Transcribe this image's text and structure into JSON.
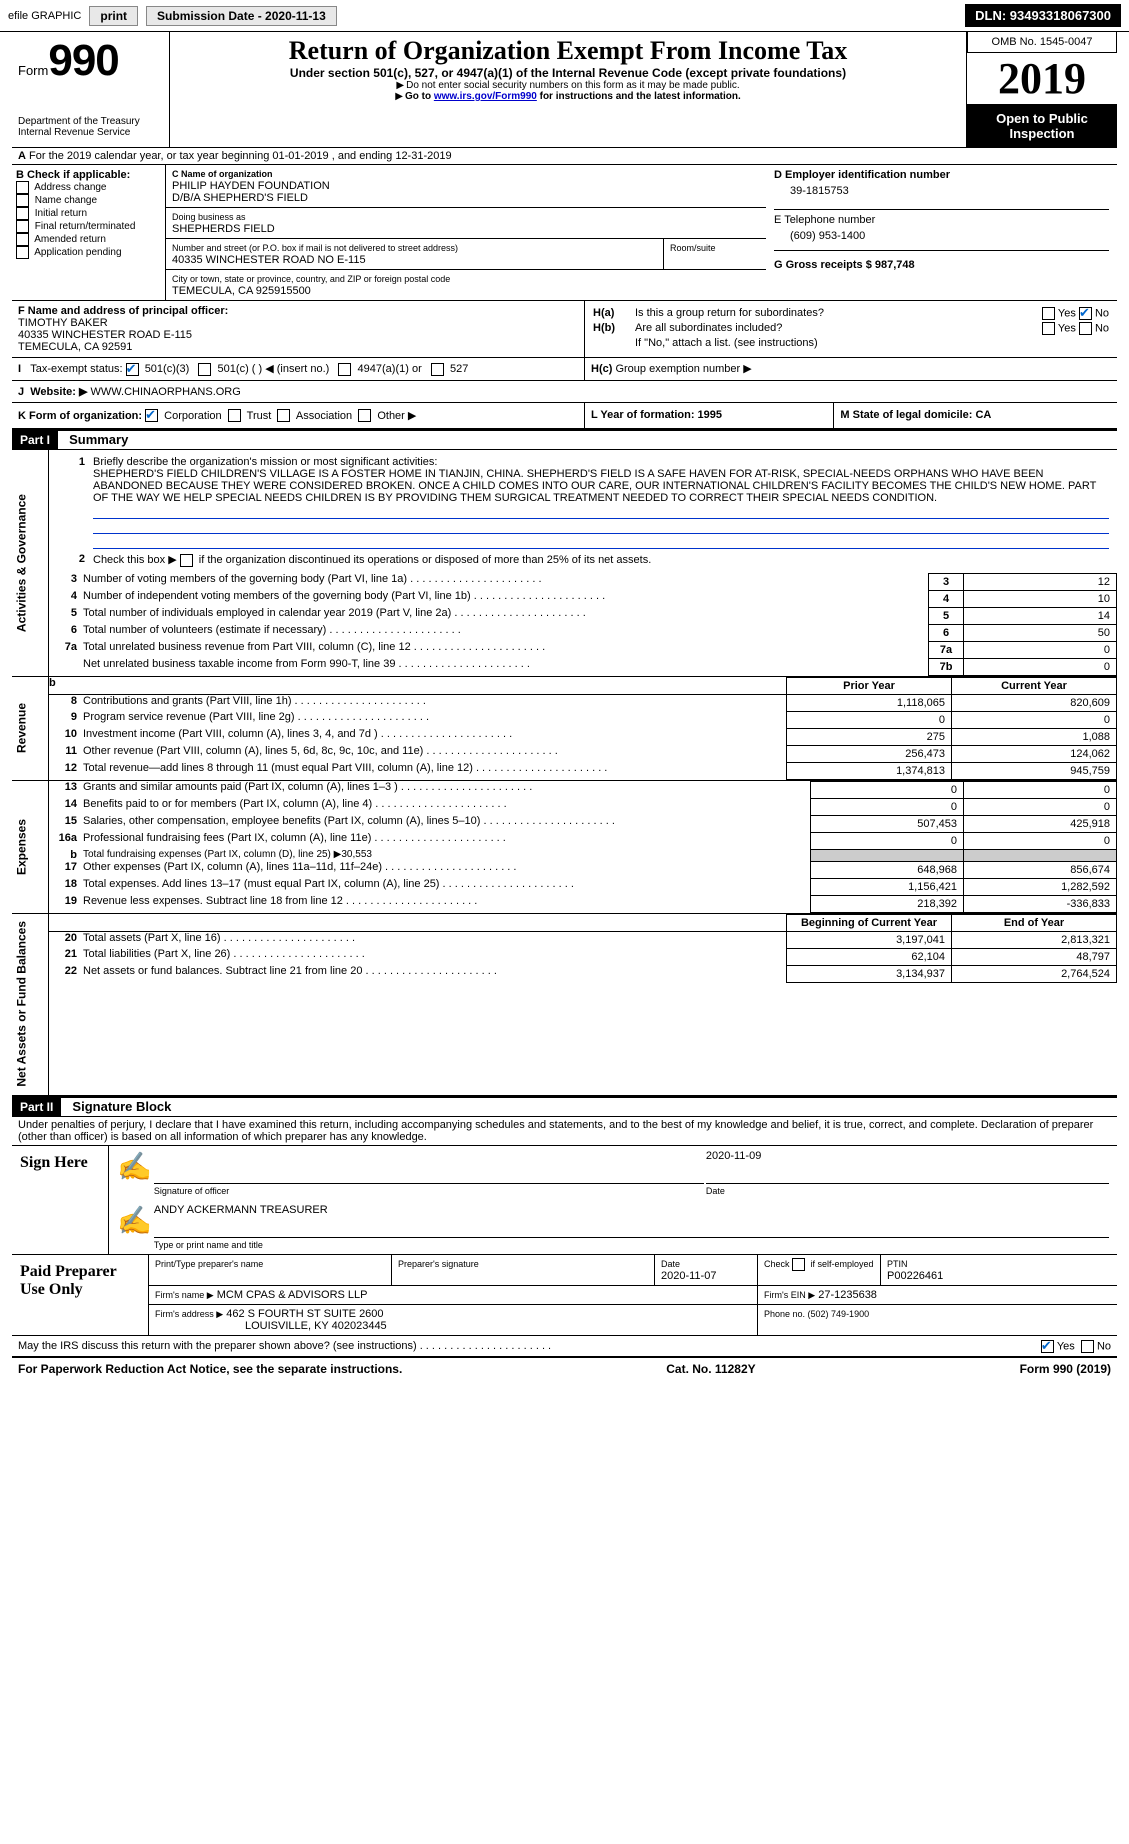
{
  "topbar": {
    "efile": "efile GRAPHIC",
    "print": "print",
    "submission": "Submission Date - 2020-11-13",
    "dln": "DLN: 93493318067300"
  },
  "header": {
    "form_word": "Form",
    "form_no": "990",
    "dept1": "Department of the Treasury",
    "dept2": "Internal Revenue Service",
    "title": "Return of Organization Exempt From Income Tax",
    "sub1": "Under section 501(c), 527, or 4947(a)(1) of the Internal Revenue Code (except private foundations)",
    "sub2": "Do not enter social security numbers on this form as it may be made public.",
    "sub3_pre": "Go to ",
    "sub3_link": "www.irs.gov/Form990",
    "sub3_post": " for instructions and the latest information.",
    "omb": "OMB No. 1545-0047",
    "year": "2019",
    "open": "Open to Public Inspection"
  },
  "row_a": "For the 2019 calendar year, or tax year beginning 01-01-2019    , and ending 12-31-2019",
  "section_b": {
    "label": "B Check if applicable:",
    "items": [
      "Address change",
      "Name change",
      "Initial return",
      "Final return/terminated",
      "Amended return",
      "Application pending"
    ]
  },
  "section_c": {
    "label": "C Name of organization",
    "name1": "PHILIP HAYDEN FOUNDATION",
    "name2": "D/B/A SHEPHERD'S FIELD",
    "dba_label": "Doing business as",
    "dba": "SHEPHERDS FIELD",
    "addr_label": "Number and street (or P.O. box if mail is not delivered to street address)",
    "addr": "40335 WINCHESTER ROAD NO E-115",
    "room_label": "Room/suite",
    "city_label": "City or town, state or province, country, and ZIP or foreign postal code",
    "city": "TEMECULA, CA  925915500"
  },
  "section_d": {
    "label": "D Employer identification number",
    "ein": "39-1815753"
  },
  "section_e": {
    "label": "E Telephone number",
    "phone": "(609) 953-1400"
  },
  "section_g": {
    "label": "G Gross receipts $ 987,748"
  },
  "section_f": {
    "label": "F Name and address of principal officer:",
    "name": "TIMOTHY BAKER",
    "addr": "40335 WINCHESTER ROAD E-115",
    "city": "TEMECULA, CA  92591"
  },
  "section_h": {
    "ha": "Is this a group return for subordinates?",
    "hb": "Are all subordinates included?",
    "hno": "If \"No,\" attach a list. (see instructions)",
    "hc": "Group exemption number ▶",
    "yes": "Yes",
    "no": "No",
    "ha_label": "H(a)",
    "hb_label": "H(b)",
    "hc_label": "H(c)"
  },
  "row_i": {
    "label": "Tax-exempt status:",
    "o1": "501(c)(3)",
    "o2": "501(c) (   ) ◀ (insert no.)",
    "o3": "4947(a)(1) or",
    "o4": "527"
  },
  "row_j": {
    "label": "Website: ▶",
    "value": "WWW.CHINAORPHANS.ORG"
  },
  "row_k": {
    "label": "K Form of organization:",
    "o1": "Corporation",
    "o2": "Trust",
    "o3": "Association",
    "o4": "Other ▶"
  },
  "row_l": {
    "label": "L Year of formation: 1995"
  },
  "row_m": {
    "label": "M State of legal domicile: CA"
  },
  "part1": {
    "tag": "Part I",
    "title": "Summary",
    "side1": "Activities & Governance",
    "side2": "Revenue",
    "side3": "Expenses",
    "side4": "Net Assets or Fund Balances",
    "l1": "Briefly describe the organization's mission or most significant activities:",
    "mission": "SHEPHERD'S FIELD CHILDREN'S VILLAGE IS A FOSTER HOME IN TIANJIN, CHINA. SHEPHERD'S FIELD IS A SAFE HAVEN FOR AT-RISK, SPECIAL-NEEDS ORPHANS WHO HAVE BEEN ABANDONED BECAUSE THEY WERE CONSIDERED BROKEN. ONCE A CHILD COMES INTO OUR CARE, OUR INTERNATIONAL CHILDREN'S FACILITY BECOMES THE CHILD'S NEW HOME. PART OF THE WAY WE HELP SPECIAL NEEDS CHILDREN IS BY PROVIDING THEM SURGICAL TREATMENT NEEDED TO CORRECT THEIR SPECIAL NEEDS CONDITION.",
    "l2": "Check this box ▶       if the organization discontinued its operations or disposed of more than 25% of its net assets.",
    "lines": [
      {
        "n": "3",
        "t": "Number of voting members of the governing body (Part VI, line 1a)",
        "bn": "3",
        "v": "12"
      },
      {
        "n": "4",
        "t": "Number of independent voting members of the governing body (Part VI, line 1b)",
        "bn": "4",
        "v": "10"
      },
      {
        "n": "5",
        "t": "Total number of individuals employed in calendar year 2019 (Part V, line 2a)",
        "bn": "5",
        "v": "14"
      },
      {
        "n": "6",
        "t": "Total number of volunteers (estimate if necessary)",
        "bn": "6",
        "v": "50"
      },
      {
        "n": "7a",
        "t": "Total unrelated business revenue from Part VIII, column (C), line 12",
        "bn": "7a",
        "v": "0"
      },
      {
        "n": "",
        "t": "Net unrelated business taxable income from Form 990-T, line 39",
        "bn": "7b",
        "v": "0"
      }
    ],
    "col_prior": "Prior Year",
    "col_current": "Current Year",
    "rev": [
      {
        "n": "8",
        "t": "Contributions and grants (Part VIII, line 1h)",
        "p": "1,118,065",
        "c": "820,609"
      },
      {
        "n": "9",
        "t": "Program service revenue (Part VIII, line 2g)",
        "p": "0",
        "c": "0"
      },
      {
        "n": "10",
        "t": "Investment income (Part VIII, column (A), lines 3, 4, and 7d )",
        "p": "275",
        "c": "1,088"
      },
      {
        "n": "11",
        "t": "Other revenue (Part VIII, column (A), lines 5, 6d, 8c, 9c, 10c, and 11e)",
        "p": "256,473",
        "c": "124,062"
      },
      {
        "n": "12",
        "t": "Total revenue—add lines 8 through 11 (must equal Part VIII, column (A), line 12)",
        "p": "1,374,813",
        "c": "945,759"
      }
    ],
    "exp": [
      {
        "n": "13",
        "t": "Grants and similar amounts paid (Part IX, column (A), lines 1–3 )",
        "p": "0",
        "c": "0"
      },
      {
        "n": "14",
        "t": "Benefits paid to or for members (Part IX, column (A), line 4)",
        "p": "0",
        "c": "0"
      },
      {
        "n": "15",
        "t": "Salaries, other compensation, employee benefits (Part IX, column (A), lines 5–10)",
        "p": "507,453",
        "c": "425,918"
      },
      {
        "n": "16a",
        "t": "Professional fundraising fees (Part IX, column (A), line 11e)",
        "p": "0",
        "c": "0"
      },
      {
        "n": "b",
        "t": "Total fundraising expenses (Part IX, column (D), line 25) ▶30,553",
        "p": "",
        "c": ""
      },
      {
        "n": "17",
        "t": "Other expenses (Part IX, column (A), lines 11a–11d, 11f–24e)",
        "p": "648,968",
        "c": "856,674"
      },
      {
        "n": "18",
        "t": "Total expenses. Add lines 13–17 (must equal Part IX, column (A), line 25)",
        "p": "1,156,421",
        "c": "1,282,592"
      },
      {
        "n": "19",
        "t": "Revenue less expenses. Subtract line 18 from line 12",
        "p": "218,392",
        "c": "-336,833"
      }
    ],
    "col_begin": "Beginning of Current Year",
    "col_end": "End of Year",
    "net": [
      {
        "n": "20",
        "t": "Total assets (Part X, line 16)",
        "p": "3,197,041",
        "c": "2,813,321"
      },
      {
        "n": "21",
        "t": "Total liabilities (Part X, line 26)",
        "p": "62,104",
        "c": "48,797"
      },
      {
        "n": "22",
        "t": "Net assets or fund balances. Subtract line 21 from line 20",
        "p": "3,134,937",
        "c": "2,764,524"
      }
    ]
  },
  "part2": {
    "tag": "Part II",
    "title": "Signature Block",
    "decl": "Under penalties of perjury, I declare that I have examined this return, including accompanying schedules and statements, and to the best of my knowledge and belief, it is true, correct, and complete. Declaration of preparer (other than officer) is based on all information of which preparer has any knowledge.",
    "sign_here": "Sign Here",
    "sig_officer": "Signature of officer",
    "sig_date_label": "Date",
    "sig_date": "2020-11-09",
    "officer_name": "ANDY ACKERMANN  TREASURER",
    "type_name": "Type or print name and title",
    "paid": "Paid Preparer Use Only",
    "prep_name_label": "Print/Type preparer's name",
    "prep_sig_label": "Preparer's signature",
    "prep_date_label": "Date",
    "prep_date": "2020-11-07",
    "check_self": "Check        if self-employed",
    "ptin_label": "PTIN",
    "ptin": "P00226461",
    "firm_name_label": "Firm's name    ▶",
    "firm_name": "MCM CPAS & ADVISORS LLP",
    "firm_ein_label": "Firm's EIN ▶",
    "firm_ein": "27-1235638",
    "firm_addr_label": "Firm's address ▶",
    "firm_addr1": "462 S FOURTH ST SUITE 2600",
    "firm_addr2": "LOUISVILLE, KY  402023445",
    "firm_phone_label": "Phone no. (502) 749-1900",
    "discuss": "May the IRS discuss this return with the preparer shown above? (see instructions)",
    "yes": "Yes",
    "no": "No"
  },
  "footer": {
    "left": "For Paperwork Reduction Act Notice, see the separate instructions.",
    "mid": "Cat. No. 11282Y",
    "right_pre": "Form ",
    "right_form": "990",
    "right_post": " (2019)"
  }
}
